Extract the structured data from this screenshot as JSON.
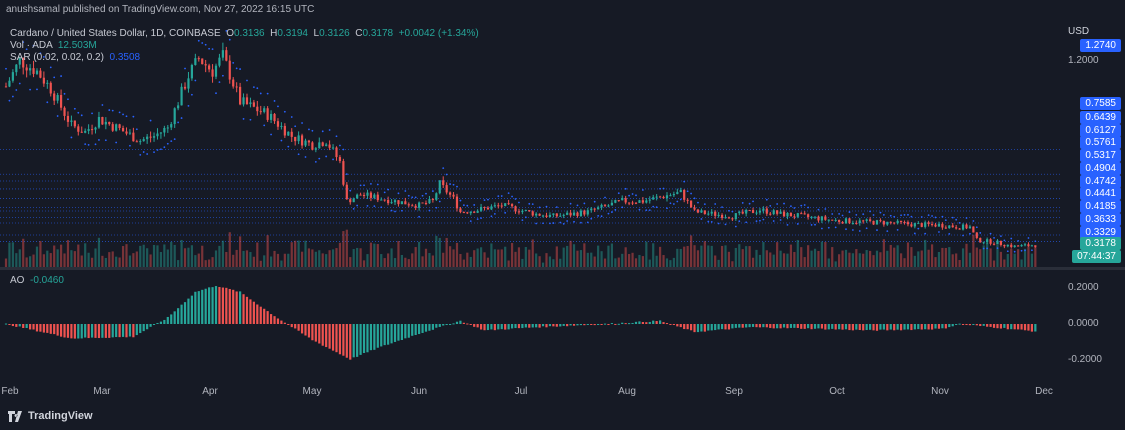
{
  "header": {
    "text": "anushsamal published on TradingView.com, Nov 27, 2022 16:15 UTC"
  },
  "legend": {
    "symbol": "Cardano / United States Dollar, 1D, COINBASE",
    "o_label": "O",
    "o": "0.3136",
    "h_label": "H",
    "h": "0.3194",
    "l_label": "L",
    "l": "0.3126",
    "c_label": "C",
    "c": "0.3178",
    "chg": "+0.0042 (+1.34%)",
    "vol_label": "Vol · ADA",
    "vol": "12.503M",
    "sar_label": "SAR (0.02, 0.02, 0.2)",
    "sar": "0.3508"
  },
  "ao_legend": {
    "label": "AO",
    "value": "-0.0460"
  },
  "price_axis": {
    "currency": "USD",
    "ticks": [
      "1.2000",
      "0.7585",
      "0.6439",
      "0.6127",
      "0.5761",
      "0.5317",
      "0.4904",
      "0.4742",
      "0.4441",
      "0.4185",
      "0.3633",
      "0.3329"
    ],
    "top_tag": "1.2740",
    "last_price": "0.3178",
    "countdown": "07:44:37"
  },
  "ao_axis": {
    "ticks": [
      "0.2000",
      "0.0000",
      "-0.2000"
    ]
  },
  "time_axis": [
    "Feb",
    "Mar",
    "Apr",
    "May",
    "Jun",
    "Jul",
    "Aug",
    "Sep",
    "Oct",
    "Nov",
    "Dec"
  ],
  "footer": {
    "brand": "TradingView"
  },
  "colors": {
    "bull": "#26a69a",
    "bear": "#ef5350",
    "sar": "#2962ff",
    "bg": "#161a25",
    "hline": "#2962ff"
  },
  "chart_data": [
    {
      "type": "candlestick",
      "title": "Cardano / United States Dollar, 1D, COINBASE",
      "ylabel": "USD",
      "ylim": [
        0.3,
        1.4
      ],
      "x_range": [
        "2022-02-01",
        "2022-12-03"
      ],
      "x_ticks": [
        "Feb",
        "Mar",
        "Apr",
        "May",
        "Jun",
        "Jul",
        "Aug",
        "Sep",
        "Oct",
        "Nov",
        "Dec"
      ],
      "horizontal_levels": [
        0.7585,
        0.6439,
        0.6127,
        0.5761,
        0.5317,
        0.4904,
        0.4742,
        0.4441,
        0.4185,
        0.3633,
        0.3329
      ],
      "close_anchors": {
        "dates": [
          "2022-02-01",
          "2022-02-05",
          "2022-02-10",
          "2022-02-14",
          "2022-02-20",
          "2022-02-24",
          "2022-02-28",
          "2022-03-05",
          "2022-03-12",
          "2022-03-16",
          "2022-03-20",
          "2022-03-26",
          "2022-03-29",
          "2022-04-02",
          "2022-04-05",
          "2022-04-10",
          "2022-04-18",
          "2022-04-25",
          "2022-05-01",
          "2022-05-05",
          "2022-05-09",
          "2022-05-11",
          "2022-05-15",
          "2022-05-25",
          "2022-06-01",
          "2022-06-05",
          "2022-06-07",
          "2022-06-11",
          "2022-06-13",
          "2022-06-18",
          "2022-06-25",
          "2022-07-05",
          "2022-07-10",
          "2022-07-20",
          "2022-07-30",
          "2022-08-05",
          "2022-08-13",
          "2022-08-16",
          "2022-08-20",
          "2022-08-31",
          "2022-09-08",
          "2022-09-14",
          "2022-09-20",
          "2022-09-30",
          "2022-10-15",
          "2022-10-25",
          "2022-10-30",
          "2022-11-05",
          "2022-11-08",
          "2022-11-10",
          "2022-11-15",
          "2022-11-21",
          "2022-11-27"
        ],
        "close": [
          1.05,
          1.17,
          1.12,
          1.04,
          0.87,
          0.84,
          0.9,
          0.86,
          0.8,
          0.82,
          0.86,
          1.1,
          1.18,
          1.12,
          1.19,
          0.98,
          0.92,
          0.82,
          0.78,
          0.8,
          0.7,
          0.52,
          0.55,
          0.52,
          0.5,
          0.52,
          0.6,
          0.53,
          0.47,
          0.48,
          0.5,
          0.46,
          0.45,
          0.47,
          0.52,
          0.52,
          0.55,
          0.56,
          0.47,
          0.45,
          0.48,
          0.46,
          0.45,
          0.43,
          0.42,
          0.41,
          0.41,
          0.4,
          0.4,
          0.34,
          0.33,
          0.31,
          0.3178
        ]
      },
      "parabolic_sar": {
        "params": "0.02, 0.02, 0.2",
        "last": 0.3508
      },
      "volume": {
        "unit": "ADA",
        "last": "12.503M"
      }
    },
    {
      "type": "histogram",
      "title": "AO",
      "ylim": [
        -0.3,
        0.3
      ],
      "y_ticks": [
        0.2,
        0.0,
        -0.2
      ],
      "anchors": {
        "dates": [
          "2022-02-01",
          "2022-02-20",
          "2022-03-10",
          "2022-03-20",
          "2022-03-28",
          "2022-04-03",
          "2022-04-10",
          "2022-04-20",
          "2022-05-01",
          "2022-05-12",
          "2022-05-20",
          "2022-06-01",
          "2022-06-13",
          "2022-06-20",
          "2022-07-05",
          "2022-07-25",
          "2022-08-10",
          "2022-08-20",
          "2022-09-05",
          "2022-09-25",
          "2022-10-10",
          "2022-10-31",
          "2022-11-05",
          "2022-11-27"
        ],
        "value": [
          0.0,
          -0.09,
          -0.08,
          0.04,
          0.2,
          0.24,
          0.2,
          0.05,
          -0.1,
          -0.22,
          -0.15,
          -0.06,
          0.02,
          -0.04,
          -0.02,
          0.0,
          0.02,
          -0.05,
          -0.02,
          -0.03,
          -0.04,
          -0.03,
          0.0,
          -0.046
        ]
      },
      "last": -0.046
    }
  ]
}
